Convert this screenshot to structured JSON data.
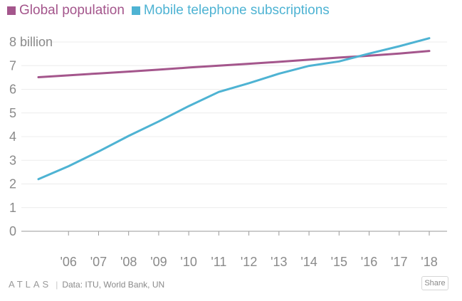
{
  "chart_data": {
    "type": "line",
    "x": [
      2005,
      2006,
      2007,
      2008,
      2009,
      2010,
      2011,
      2012,
      2013,
      2014,
      2015,
      2016,
      2017,
      2018
    ],
    "x_tick_labels": [
      "'06",
      "'07",
      "'08",
      "'09",
      "'10",
      "'11",
      "'12",
      "'13",
      "'14",
      "'15",
      "'16",
      "'17",
      "'18"
    ],
    "y_tick_labels": [
      "0",
      "1",
      "2",
      "3",
      "4",
      "5",
      "6",
      "7",
      "8 billion"
    ],
    "ylim": [
      0,
      8
    ],
    "grid": "horizontal",
    "legend_position": "top-left",
    "series": [
      {
        "name": "Global population",
        "color": "#a4568c",
        "values": [
          6.51,
          6.59,
          6.67,
          6.75,
          6.83,
          6.92,
          7.0,
          7.08,
          7.16,
          7.25,
          7.34,
          7.42,
          7.51,
          7.62
        ]
      },
      {
        "name": "Mobile telephone subscriptions",
        "color": "#4eb3d3",
        "values": [
          2.2,
          2.75,
          3.37,
          4.03,
          4.64,
          5.29,
          5.89,
          6.26,
          6.66,
          6.99,
          7.18,
          7.51,
          7.82,
          8.16
        ]
      }
    ]
  },
  "footer": {
    "brand": "ATLAS",
    "separator": "|",
    "source": "Data: ITU, World Bank, UN",
    "share_label": "Share"
  }
}
